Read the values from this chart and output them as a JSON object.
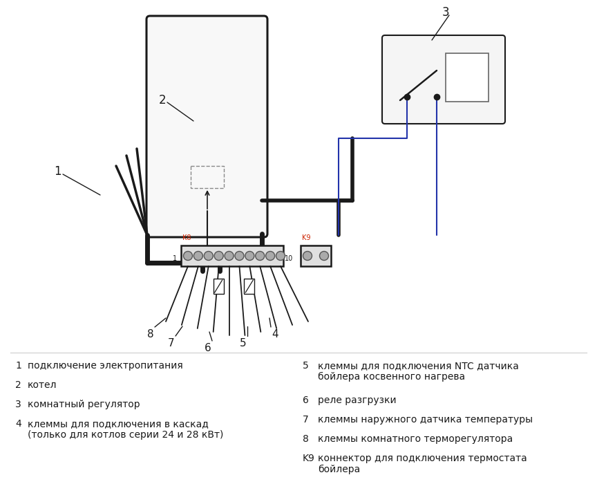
{
  "bg": "#ffffff",
  "lc": "#1a1a1a",
  "wc": "#2233aa",
  "red": "#cc2200",
  "figsize": [
    8.64,
    7.0
  ],
  "dpi": 100,
  "legend_left": [
    [
      "1",
      "подключение электропитания"
    ],
    [
      "2",
      "котел"
    ],
    [
      "3",
      "комнатный регулятор"
    ],
    [
      "4",
      "клеммы для подключения в каскад\n(только для котлов серии 24 и 28 кВт)"
    ]
  ],
  "legend_right": [
    [
      "5",
      "клеммы для подключения NTC датчика\nбойлера косвенного нагрева"
    ],
    [
      "6",
      "реле разгрузки"
    ],
    [
      "7",
      "клеммы наружного датчика температуры"
    ],
    [
      "8",
      "клеммы комнатного терморегулятора"
    ],
    [
      "K9",
      "коннектор для подключения термостата\nбойлера"
    ]
  ]
}
